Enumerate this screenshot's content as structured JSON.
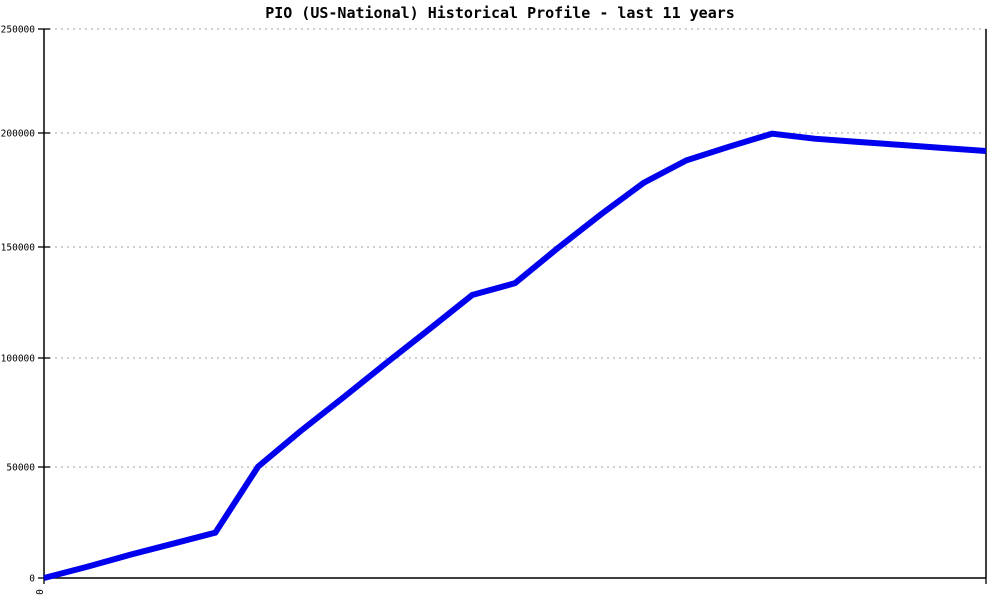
{
  "chart_data": {
    "type": "line",
    "title": "PIO (US-National) Historical Profile - last 11 years",
    "xlabel": "",
    "ylabel": "",
    "xlim": [
      0,
      11
    ],
    "ylim": [
      0,
      250000
    ],
    "grid": "horizontal dotted gridlines at each y tick",
    "legend_position": "none",
    "series_color": "#0000ee",
    "x": [
      0,
      0.5,
      1,
      1.5,
      2,
      2.5,
      3,
      3.5,
      4,
      4.5,
      5,
      5.5,
      6,
      6.5,
      7,
      7.5,
      8,
      8.5,
      9,
      9.5,
      10,
      10.5,
      11
    ],
    "values": [
      0,
      5000,
      10400,
      15400,
      20400,
      50200,
      66600,
      82000,
      97800,
      113000,
      128400,
      133700,
      149500,
      164200,
      178100,
      188000,
      194000,
      199700,
      197500,
      196100,
      194800,
      193400,
      192100
    ],
    "y_ticks": [
      0,
      50000,
      100000,
      150000,
      200000,
      250000
    ],
    "y_tick_labels": [
      "0",
      "50000",
      "100000",
      "150000",
      "200000",
      "250000"
    ],
    "x_tick_values": [
      0,
      11
    ],
    "x_tick_labels": [
      "0",
      ""
    ]
  }
}
